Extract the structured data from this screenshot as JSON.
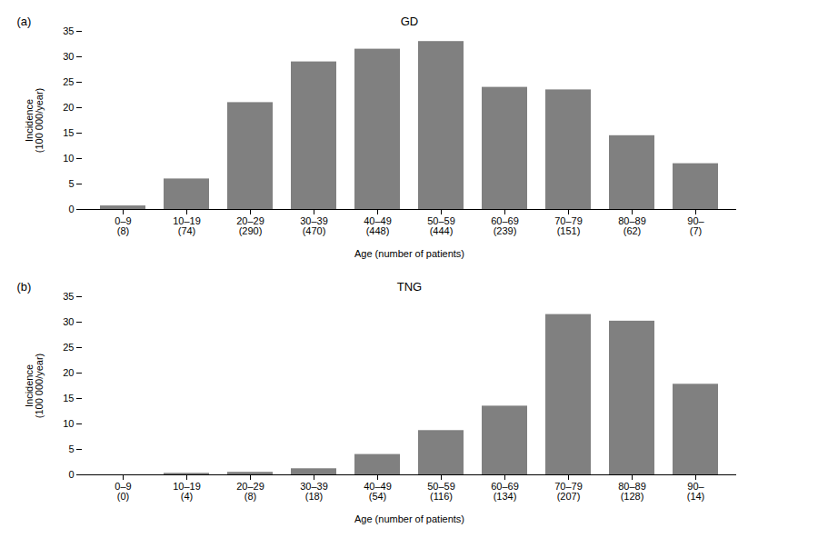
{
  "chart_data": [
    {
      "type": "bar",
      "title": "GD",
      "annotation": "(a)",
      "xlabel": "Age (number of patients)",
      "ylabel": "Incidence\n(100 000/year)",
      "categories": [
        "0–9\n(8)",
        "10–19\n(74)",
        "20–29\n(290)",
        "30–39\n(470)",
        "40–49\n(448)",
        "50–59\n(444)",
        "60–69\n(239)",
        "70–79\n(151)",
        "80–89\n(62)",
        "90–\n(7)"
      ],
      "values": [
        0.7,
        6.0,
        21.0,
        29.0,
        31.5,
        33.0,
        24.0,
        23.5,
        14.5,
        9.0
      ],
      "color": "#808080",
      "ylim": [
        0,
        35
      ],
      "yticks": [
        0,
        5,
        10,
        15,
        20,
        25,
        30,
        35
      ],
      "grid": false
    },
    {
      "type": "bar",
      "title": "TNG",
      "annotation": "(b)",
      "xlabel": "Age (number of patients)",
      "ylabel": "Incidence\n(100 000/year)",
      "categories": [
        "0–9\n(0)",
        "10–19\n(4)",
        "20–29\n(8)",
        "30–39\n(18)",
        "40–49\n(54)",
        "50–59\n(116)",
        "60–69\n(134)",
        "70–79\n(207)",
        "80–89\n(128)",
        "90–\n(14)"
      ],
      "values": [
        0.0,
        0.3,
        0.5,
        1.2,
        4.0,
        8.7,
        13.5,
        31.5,
        30.2,
        17.8
      ],
      "color": "#808080",
      "ylim": [
        0,
        35
      ],
      "yticks": [
        0,
        5,
        10,
        15,
        20,
        25,
        30,
        35
      ],
      "grid": false
    }
  ]
}
